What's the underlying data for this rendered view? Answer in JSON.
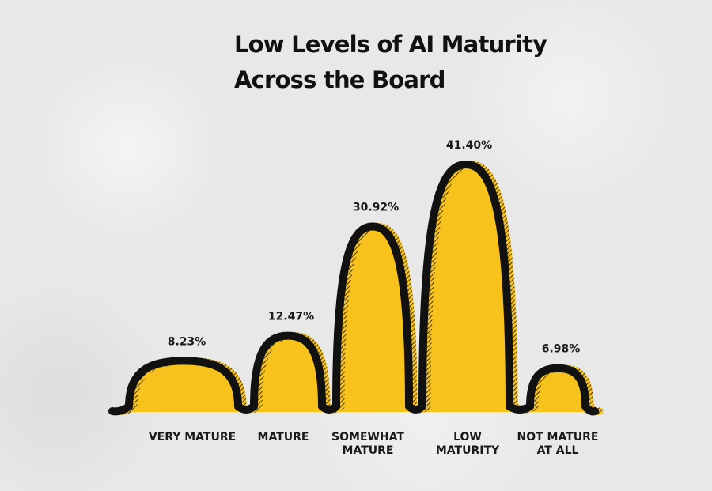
{
  "chart_data": {
    "type": "area",
    "title": [
      "Low Levels of AI Maturity",
      "Across the Board"
    ],
    "categories": [
      "VERY MATURE",
      "MATURE",
      "SOMEWHAT MATURE",
      "LOW MATURITY",
      "NOT MATURE AT ALL"
    ],
    "values": [
      8.23,
      12.47,
      30.92,
      41.4,
      6.98
    ],
    "value_labels": [
      "8.23%",
      "12.47%",
      "30.92%",
      "41.40%",
      "6.98%"
    ],
    "category_lines": [
      [
        "VERY MATURE"
      ],
      [
        "MATURE"
      ],
      [
        "SOMEWHAT",
        "MATURE"
      ],
      [
        "LOW",
        "MATURITY"
      ],
      [
        "NOT MATURE",
        "AT ALL"
      ]
    ],
    "ylim": [
      0,
      41.4
    ],
    "grid": false,
    "legend": "none",
    "colors": {
      "fill": "#f8c21c",
      "outline": "#111111",
      "hatch": "#d39d0a",
      "text": "#1a1a1a"
    }
  }
}
